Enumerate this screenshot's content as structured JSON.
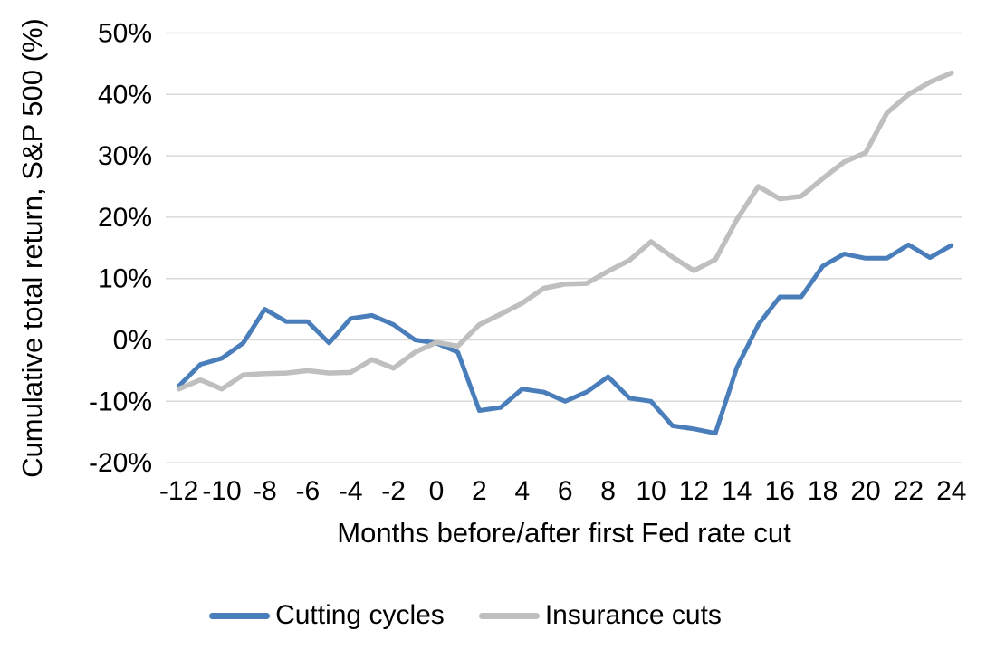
{
  "chart_data": {
    "type": "line",
    "title": "",
    "xlabel": "Months before/after first Fed rate cut",
    "ylabel": "Cumulative total return, S&P 500 (%)",
    "xlim": [
      -12,
      24
    ],
    "ylim": [
      -20,
      50
    ],
    "grid": "horizontal",
    "legend_position": "bottom",
    "background_color": "#ffffff",
    "gridline_color": "#d9d9d9",
    "text_color": "#000000",
    "x": [
      -12,
      -11,
      -10,
      -9,
      -8,
      -7,
      -6,
      -5,
      -4,
      -3,
      -2,
      -1,
      0,
      1,
      2,
      3,
      4,
      5,
      6,
      7,
      8,
      9,
      10,
      11,
      12,
      13,
      14,
      15,
      16,
      17,
      18,
      19,
      20,
      21,
      22,
      23,
      24
    ],
    "series": [
      {
        "name": "Cutting cycles",
        "color": "#4a7ebb",
        "values": [
          -7.5,
          -4,
          -3,
          -0.5,
          5,
          3,
          3,
          -0.5,
          3.5,
          4,
          2.5,
          0,
          -0.5,
          -2,
          -11.5,
          -11,
          -8,
          -8.5,
          -10,
          -8.5,
          -6,
          -9.5,
          -10,
          -14,
          -14.5,
          -15.2,
          -4.5,
          2.5,
          7,
          7,
          12,
          14,
          13.3,
          13.3,
          15.5,
          13.4,
          15.4
        ]
      },
      {
        "name": "Insurance cuts",
        "color": "#bfbfbf",
        "values": [
          -8,
          -6.5,
          -8,
          -5.7,
          -5.5,
          -5.4,
          -5,
          -5.4,
          -5.3,
          -3.2,
          -4.6,
          -2,
          -0.4,
          -1,
          2.5,
          4.2,
          6,
          8.4,
          9.1,
          9.2,
          11.2,
          13,
          16,
          13.5,
          11.3,
          13.1,
          19.6,
          25,
          23,
          23.4,
          26.3,
          29,
          30.5,
          37,
          40,
          42,
          43.5
        ]
      }
    ],
    "y_ticks": [
      {
        "label": "50%",
        "value": 50
      },
      {
        "label": "40%",
        "value": 40
      },
      {
        "label": "30%",
        "value": 30
      },
      {
        "label": "20%",
        "value": 20
      },
      {
        "label": "10%",
        "value": 10
      },
      {
        "label": "0%",
        "value": 0
      },
      {
        "label": "-10%",
        "value": -10
      },
      {
        "label": "-20%",
        "value": -20
      }
    ],
    "x_ticks": [
      {
        "label": "-12",
        "value": -12
      },
      {
        "label": "-10",
        "value": -10
      },
      {
        "label": "-8",
        "value": -8
      },
      {
        "label": "-6",
        "value": -6
      },
      {
        "label": "-4",
        "value": -4
      },
      {
        "label": "-2",
        "value": -2
      },
      {
        "label": "0",
        "value": 0
      },
      {
        "label": "2",
        "value": 2
      },
      {
        "label": "4",
        "value": 4
      },
      {
        "label": "6",
        "value": 6
      },
      {
        "label": "8",
        "value": 8
      },
      {
        "label": "10",
        "value": 10
      },
      {
        "label": "12",
        "value": 12
      },
      {
        "label": "14",
        "value": 14
      },
      {
        "label": "16",
        "value": 16
      },
      {
        "label": "18",
        "value": 18
      },
      {
        "label": "20",
        "value": 20
      },
      {
        "label": "22",
        "value": 22
      },
      {
        "label": "24",
        "value": 24
      }
    ]
  }
}
